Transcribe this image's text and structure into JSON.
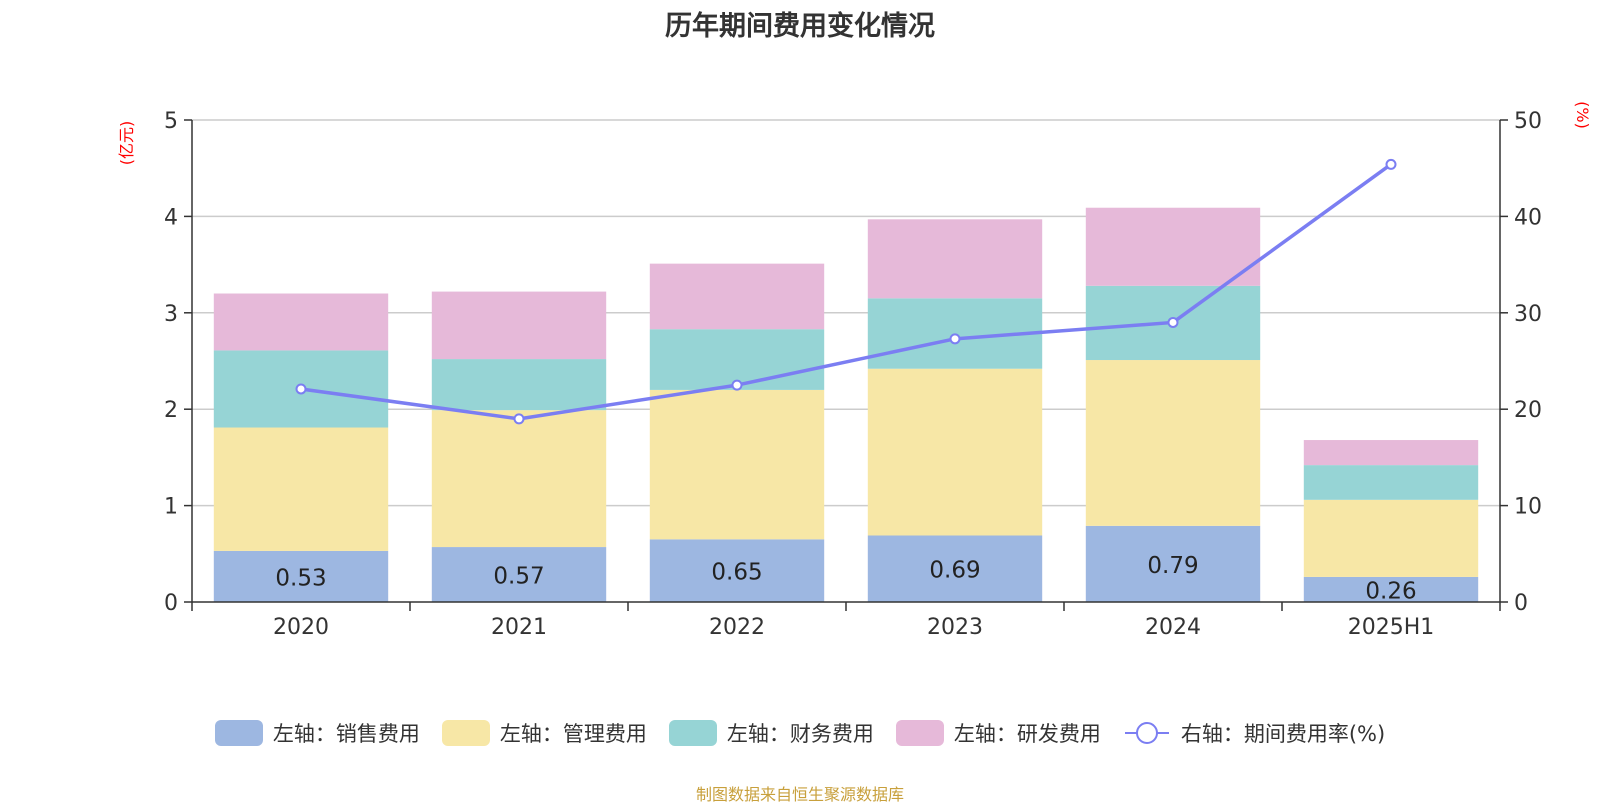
{
  "title": "历年期间费用变化情况",
  "source_note": "制图数据来自恒生聚源数据库",
  "colors": {
    "sales": "#9db7e1",
    "admin": "#f7e7a6",
    "finance": "#96d4d5",
    "rd": "#e6b9d9",
    "rate_line": "#7b7ef2",
    "axis_unit": "#ff0000"
  },
  "chart_data": {
    "type": "bar",
    "stacked": true,
    "categories": [
      "2020",
      "2021",
      "2022",
      "2023",
      "2024",
      "2025H1"
    ],
    "y_left_label": "(亿元)",
    "y_right_label": "(%)",
    "y_left_lim": [
      0,
      5
    ],
    "y_left_ticks": [
      0,
      1,
      2,
      3,
      4,
      5
    ],
    "y_right_lim": [
      0,
      50
    ],
    "y_right_ticks": [
      0,
      10,
      20,
      30,
      40,
      50
    ],
    "grid": true,
    "legend_position": "bottom",
    "series": [
      {
        "name": "左轴：销售费用",
        "axis": "left",
        "type": "bar",
        "color_key": "sales",
        "values": [
          0.53,
          0.57,
          0.65,
          0.69,
          0.79,
          0.26
        ],
        "data_labels": [
          "0.53",
          "0.57",
          "0.65",
          "0.69",
          "0.79",
          "0.26"
        ]
      },
      {
        "name": "左轴：管理费用",
        "axis": "left",
        "type": "bar",
        "color_key": "admin",
        "values": [
          1.28,
          1.42,
          1.55,
          1.73,
          1.72,
          0.8
        ]
      },
      {
        "name": "左轴：财务费用",
        "axis": "left",
        "type": "bar",
        "color_key": "finance",
        "values": [
          0.8,
          0.53,
          0.63,
          0.73,
          0.77,
          0.36
        ]
      },
      {
        "name": "左轴：研发费用",
        "axis": "left",
        "type": "bar",
        "color_key": "rd",
        "values": [
          0.59,
          0.7,
          0.68,
          0.82,
          0.81,
          0.26
        ]
      },
      {
        "name": "右轴：期间费用率(%)",
        "axis": "right",
        "type": "line",
        "color_key": "rate_line",
        "values": [
          22.1,
          19.0,
          22.5,
          27.3,
          29.0,
          45.4
        ]
      }
    ]
  }
}
